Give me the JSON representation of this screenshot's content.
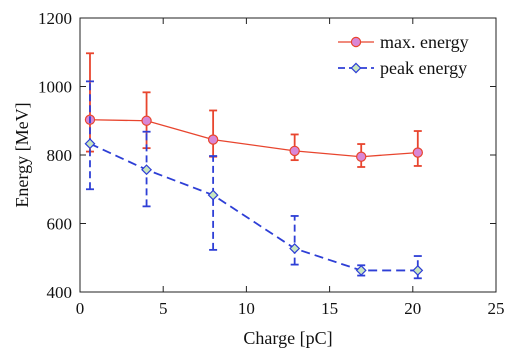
{
  "chart_data": {
    "type": "line",
    "title": "",
    "xlabel": "Charge [pC]",
    "ylabel": "Energy [MeV]",
    "xlim": [
      0,
      25
    ],
    "ylim": [
      400,
      1200
    ],
    "xticks": [
      "0",
      "5",
      "10",
      "15",
      "20",
      "25"
    ],
    "yticks": [
      "400",
      "600",
      "800",
      "1000",
      "1200"
    ],
    "legend_position": "top-right",
    "grid": false,
    "series": [
      {
        "name": "max. energy",
        "color": "#e8452e",
        "marker": "circle",
        "marker_fill": "#d987d6",
        "line_style": "solid",
        "x": [
          0.6,
          4.0,
          8.0,
          12.9,
          16.9,
          20.3
        ],
        "y": [
          903,
          900,
          845,
          812,
          795,
          807
        ],
        "err_low": [
          810,
          820,
          795,
          785,
          765,
          768
        ],
        "err_high": [
          1097,
          983,
          930,
          860,
          832,
          870
        ]
      },
      {
        "name": "peak energy",
        "color": "#2e3fd6",
        "marker": "diamond",
        "marker_fill": "#c8e6c0",
        "line_style": "dashed",
        "x": [
          0.6,
          4.0,
          8.0,
          12.9,
          16.9,
          20.3
        ],
        "y": [
          833,
          757,
          683,
          527,
          463,
          463
        ],
        "err_low": [
          700,
          650,
          523,
          480,
          448,
          440
        ],
        "err_high": [
          1015,
          868,
          797,
          622,
          478,
          505
        ]
      }
    ]
  }
}
